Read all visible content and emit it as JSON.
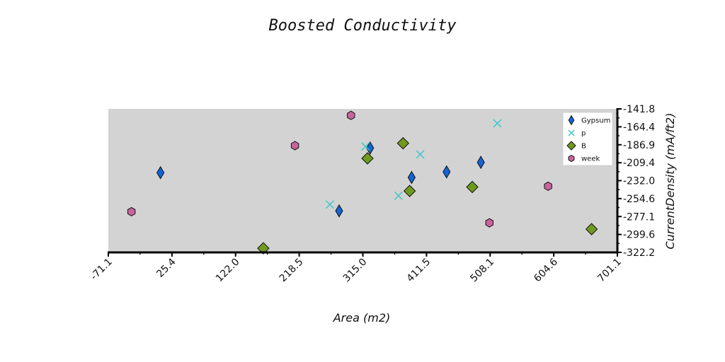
{
  "chart_data": {
    "type": "scatter",
    "title": "Boosted Conductivity",
    "xlabel": "Area (m2)",
    "ylabel": "CurrentDensity (mA/ft2)",
    "xlim": [
      -71.1,
      701.1
    ],
    "ylim": [
      -322.2,
      -141.8
    ],
    "x_ticks": [
      "-71.1",
      "25.4",
      "122.0",
      "218.5",
      "315.0",
      "411.5",
      "508.1",
      "604.6",
      "701.1"
    ],
    "y_ticks": [
      "-141.8",
      "-164.4",
      "-186.9",
      "-209.4",
      "-232.0",
      "-254.6",
      "-277.1",
      "-299.6",
      "-322.2"
    ],
    "grid": false,
    "background": "#d3d3d3",
    "legend_position": "top-right",
    "series": [
      {
        "name": "Gypsum",
        "marker": "thin-diamond",
        "color": "#1464d2",
        "points": [
          [
            8,
            -222
          ],
          [
            279,
            -270
          ],
          [
            326,
            -191
          ],
          [
            389,
            -228
          ],
          [
            442,
            -221
          ],
          [
            494,
            -209
          ]
        ]
      },
      {
        "name": "p",
        "marker": "x",
        "color": "#3cc8c8",
        "points": [
          [
            265,
            -262
          ],
          [
            319,
            -189
          ],
          [
            369,
            -251
          ],
          [
            402,
            -199
          ],
          [
            519,
            -160
          ]
        ]
      },
      {
        "name": "B",
        "marker": "diamond",
        "color": "#6e9b1e",
        "points": [
          [
            164,
            -317
          ],
          [
            322,
            -204
          ],
          [
            376,
            -185
          ],
          [
            386,
            -245
          ],
          [
            481,
            -240
          ],
          [
            662,
            -293
          ]
        ]
      },
      {
        "name": "week",
        "marker": "hexagon",
        "color": "#c8649b",
        "points": [
          [
            -36,
            -271
          ],
          [
            212,
            -188
          ],
          [
            297,
            -150
          ],
          [
            507,
            -285
          ],
          [
            596,
            -239
          ]
        ]
      }
    ]
  }
}
